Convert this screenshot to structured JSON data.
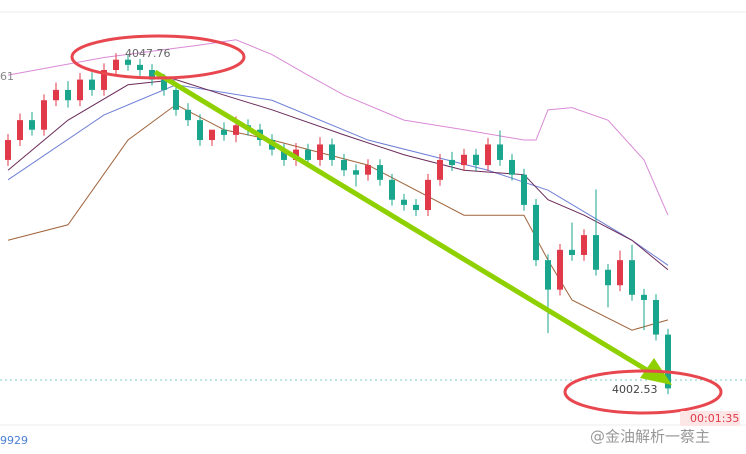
{
  "chart_data": {
    "type": "candlestick",
    "open": [
      4033.5,
      4036.2,
      4038.9,
      4037.6,
      4041.6,
      4043.0,
      4041.6,
      4044.4,
      4043.0,
      4045.7,
      4047.1,
      4046.4,
      4045.7,
      4044.4,
      4043.0,
      4040.3,
      4038.9,
      4036.2,
      4037.6,
      4036.9,
      4038.2,
      4037.6,
      4036.2,
      4034.9,
      4033.5,
      4034.9,
      4033.5,
      4035.6,
      4033.5,
      4032.1,
      4031.5,
      4032.8,
      4030.8,
      4028.1,
      4027.4,
      4026.7,
      4030.8,
      4033.5,
      4032.8,
      4034.2,
      4032.8,
      4035.6,
      4033.5,
      4031.5,
      4027.4,
      4019.9,
      4015.9,
      4021.3,
      4020.6,
      4023.3,
      4018.6,
      4016.5,
      4019.9,
      4015.2,
      4014.5,
      4009.8
    ],
    "high": [
      4037.0,
      4039.8,
      4040.0,
      4042.4,
      4044.0,
      4044.2,
      4045.3,
      4045.4,
      4046.6,
      4048.0,
      4047.8,
      4047.2,
      4046.5,
      4045.2,
      4043.9,
      4041.2,
      4039.7,
      4037.3,
      4038.6,
      4039.4,
      4039.0,
      4038.4,
      4037.0,
      4035.7,
      4035.8,
      4035.7,
      4036.6,
      4036.4,
      4034.3,
      4032.9,
      4033.6,
      4033.6,
      4031.6,
      4028.9,
      4028.2,
      4031.6,
      4034.3,
      4034.6,
      4035.0,
      4035.0,
      4036.5,
      4037.5,
      4034.3,
      4032.3,
      4028.2,
      4020.7,
      4022.1,
      4025.0,
      4024.1,
      4029.5,
      4019.4,
      4021.2,
      4022.0,
      4016.0,
      4015.3,
      4010.6
    ],
    "low": [
      4032.7,
      4035.4,
      4036.8,
      4036.8,
      4040.8,
      4040.6,
      4040.8,
      4042.2,
      4042.2,
      4044.9,
      4045.6,
      4044.9,
      4043.6,
      4042.2,
      4039.5,
      4038.1,
      4035.4,
      4035.4,
      4036.1,
      4035.9,
      4036.8,
      4035.4,
      4034.1,
      4032.7,
      4032.7,
      4032.7,
      4032.7,
      4032.7,
      4031.3,
      4029.9,
      4030.7,
      4030.0,
      4027.3,
      4026.6,
      4025.9,
      4025.9,
      4030.0,
      4032.0,
      4032.0,
      4032.0,
      4032.0,
      4032.7,
      4030.7,
      4026.6,
      4019.1,
      4010.0,
      4015.1,
      4019.8,
      4019.8,
      4017.8,
      4013.5,
      4015.7,
      4014.4,
      4010.4,
      4009.0,
      4001.7
    ],
    "close": [
      4036.2,
      4038.9,
      4037.6,
      4041.6,
      4043.0,
      4041.6,
      4044.4,
      4043.0,
      4045.7,
      4047.1,
      4046.4,
      4045.7,
      4044.4,
      4043.0,
      4040.3,
      4038.9,
      4036.2,
      4037.6,
      4036.9,
      4038.2,
      4037.6,
      4036.2,
      4034.9,
      4033.5,
      4034.9,
      4033.5,
      4035.6,
      4033.5,
      4032.1,
      4031.5,
      4032.8,
      4030.8,
      4028.1,
      4027.4,
      4026.7,
      4030.8,
      4033.5,
      4032.8,
      4034.2,
      4032.8,
      4035.6,
      4033.5,
      4031.5,
      4027.4,
      4019.9,
      4015.9,
      4021.3,
      4020.6,
      4023.3,
      4018.6,
      4016.5,
      4019.9,
      4015.2,
      4014.5,
      4009.8,
      4002.5
    ],
    "up_color": "#e0394a",
    "down_color": "#1aa68d",
    "ylim": [
      3993.6,
      4055.2
    ],
    "lines": [
      {
        "color": "#d98ad6",
        "x": [
          0,
          8,
          16,
          19,
          22,
          25,
          28,
          33,
          38,
          43,
          44,
          45,
          47,
          50,
          53,
          55
        ],
        "values": [
          4045.0,
          4047.4,
          4049.1,
          4049.8,
          4047.8,
          4045.0,
          4042.3,
          4038.9,
          4037.6,
          4036.2,
          4036.2,
          4040.3,
          4040.6,
          4038.9,
          4033.5,
          4026.0
        ]
      },
      {
        "color": "#6f7fd6",
        "x": [
          0,
          8,
          14,
          22,
          30,
          40,
          45,
          52,
          55
        ],
        "values": [
          4030.8,
          4039.6,
          4043.7,
          4041.6,
          4036.2,
          4032.1,
          4029.4,
          4022.6,
          4019.2
        ]
      },
      {
        "color": "#6b2a5a",
        "x": [
          0,
          5,
          10,
          14,
          18,
          22,
          28,
          33,
          38,
          43,
          45,
          48,
          52,
          55
        ],
        "values": [
          4032.1,
          4038.9,
          4043.7,
          4044.4,
          4042.3,
          4040.3,
          4036.9,
          4034.2,
          4032.1,
          4031.5,
          4028.1,
          4026.0,
          4022.6,
          4018.6
        ]
      },
      {
        "color": "#a0643c",
        "x": [
          0,
          5,
          10,
          14,
          18,
          22,
          30,
          38,
          43,
          45,
          47,
          52,
          55
        ],
        "values": [
          4022.6,
          4024.7,
          4036.2,
          4041.0,
          4037.6,
          4036.2,
          4032.8,
          4026.0,
          4026.0,
          4019.9,
          4014.5,
          4010.4,
          4011.8
        ]
      }
    ],
    "annotations": [
      "4047.76",
      "4002.53"
    ],
    "timer": "00:01:35",
    "left_label": "61",
    "bottom_label": "9929",
    "watermark": "@金油解析一蔡主"
  }
}
